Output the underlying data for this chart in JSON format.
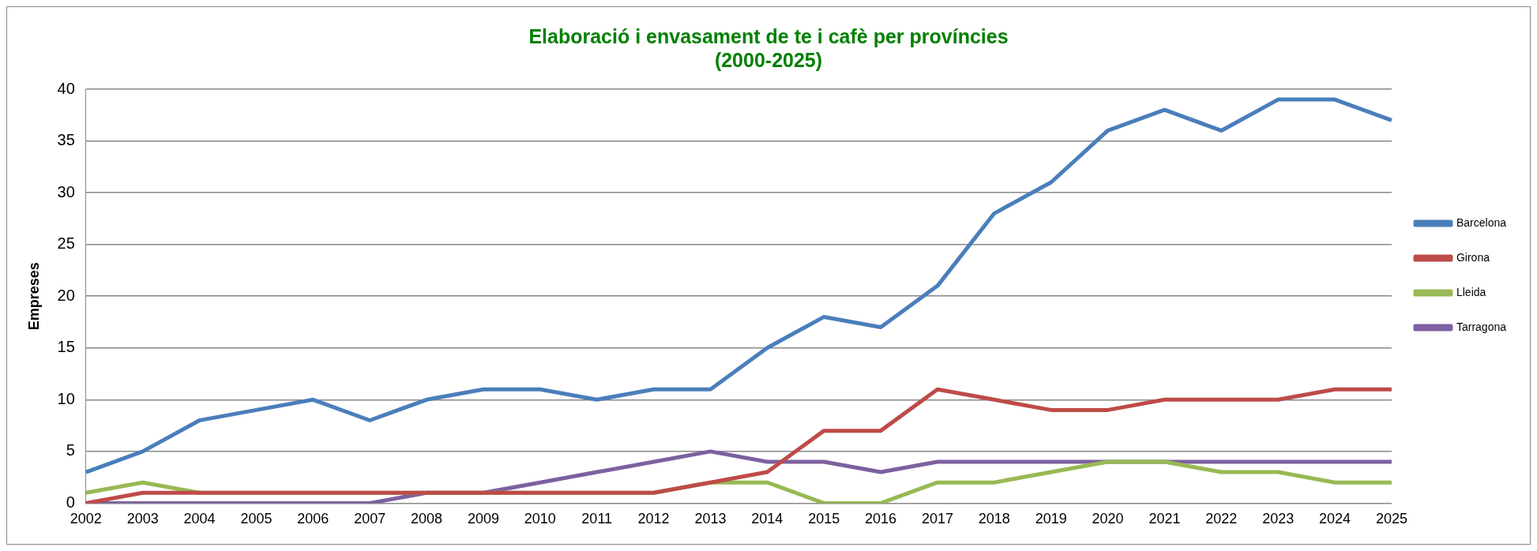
{
  "chart_data": {
    "type": "line",
    "title": "Elaboració i envasament de te i cafè per províncies\n(2000-2025)",
    "ylabel": "Empreses",
    "categories": [
      "2002",
      "2003",
      "2004",
      "2005",
      "2006",
      "2007",
      "2008",
      "2009",
      "2010",
      "2011",
      "2012",
      "2013",
      "2014",
      "2015",
      "2016",
      "2017",
      "2018",
      "2019",
      "2020",
      "2021",
      "2022",
      "2023",
      "2024",
      "2025"
    ],
    "series": [
      {
        "name": "Barcelona",
        "color": "#4a7ebb",
        "values": [
          3,
          5,
          8,
          9,
          10,
          8,
          10,
          11,
          11,
          10,
          11,
          11,
          15,
          18,
          17,
          21,
          28,
          31,
          36,
          38,
          36,
          39,
          39,
          37
        ]
      },
      {
        "name": "Girona",
        "color": "#be4b48",
        "values": [
          0,
          1,
          1,
          1,
          1,
          1,
          1,
          1,
          1,
          1,
          1,
          2,
          3,
          7,
          7,
          11,
          10,
          9,
          9,
          10,
          10,
          10,
          11,
          11
        ]
      },
      {
        "name": "Lleida",
        "color": "#98b954",
        "values": [
          1,
          2,
          1,
          1,
          1,
          1,
          1,
          1,
          1,
          1,
          1,
          2,
          2,
          0,
          0,
          2,
          2,
          3,
          4,
          4,
          3,
          3,
          2,
          2
        ]
      },
      {
        "name": "Tarragona",
        "color": "#7d60a0",
        "values": [
          0,
          0,
          0,
          0,
          0,
          0,
          1,
          1,
          2,
          3,
          4,
          5,
          4,
          4,
          3,
          4,
          4,
          4,
          4,
          4,
          4,
          4,
          4,
          4
        ]
      }
    ],
    "ylim": [
      0,
      40
    ],
    "yticks": [
      0,
      5,
      10,
      15,
      20,
      25,
      30,
      35,
      40
    ],
    "grid": "y",
    "legend": "right",
    "marker": "none",
    "line_style": "solid"
  }
}
